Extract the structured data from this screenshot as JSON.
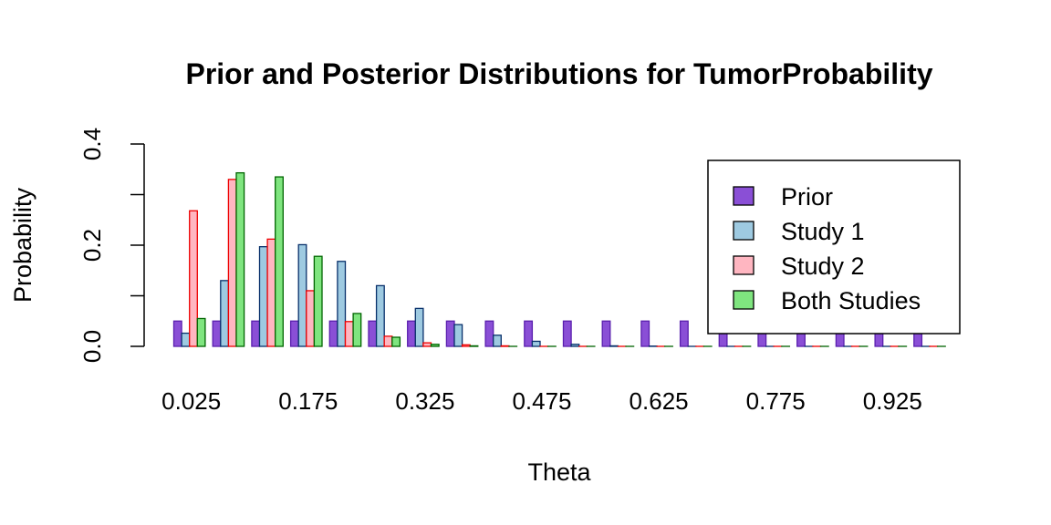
{
  "chart_data": {
    "type": "bar",
    "title": "Prior and Posterior Distributions for TumorProbability",
    "xlabel": "Theta",
    "ylabel": "Probability",
    "ylim": [
      0,
      0.4
    ],
    "yticks": [
      "0.0",
      "0.2",
      "0.4"
    ],
    "categories": [
      "0.025",
      "0.075",
      "0.125",
      "0.175",
      "0.225",
      "0.275",
      "0.325",
      "0.375",
      "0.425",
      "0.475",
      "0.525",
      "0.575",
      "0.625",
      "0.675",
      "0.725",
      "0.775",
      "0.825",
      "0.875",
      "0.925",
      "0.975"
    ],
    "xtick_labels": [
      "0.025",
      "0.175",
      "0.325",
      "0.475",
      "0.625",
      "0.775",
      "0.925"
    ],
    "legend_position": "top-right",
    "series": [
      {
        "name": "Prior",
        "fill": "#8a4fd6",
        "stroke": "#5a1fae",
        "values": [
          0.05,
          0.05,
          0.05,
          0.05,
          0.05,
          0.05,
          0.05,
          0.05,
          0.05,
          0.05,
          0.05,
          0.05,
          0.05,
          0.05,
          0.05,
          0.05,
          0.05,
          0.05,
          0.05,
          0.05
        ]
      },
      {
        "name": "Study 1",
        "fill": "#9ecae1",
        "stroke": "#08306b",
        "values": [
          0.026,
          0.13,
          0.197,
          0.201,
          0.168,
          0.12,
          0.075,
          0.043,
          0.022,
          0.01,
          0.004,
          0.001,
          0.0005,
          0,
          0,
          0,
          0,
          0,
          0,
          0
        ]
      },
      {
        "name": "Study 2",
        "fill": "#ffb6c1",
        "stroke": "#ee0000",
        "values": [
          0.268,
          0.33,
          0.212,
          0.11,
          0.049,
          0.02,
          0.007,
          0.003,
          0.001,
          0,
          0,
          0,
          0,
          0,
          0,
          0,
          0,
          0,
          0,
          0
        ]
      },
      {
        "name": "Both Studies",
        "fill": "#7fe57f",
        "stroke": "#006400",
        "values": [
          0.055,
          0.343,
          0.335,
          0.178,
          0.065,
          0.018,
          0.004,
          0.001,
          0,
          0,
          0,
          0,
          0,
          0,
          0,
          0,
          0,
          0,
          0,
          0
        ]
      }
    ]
  }
}
